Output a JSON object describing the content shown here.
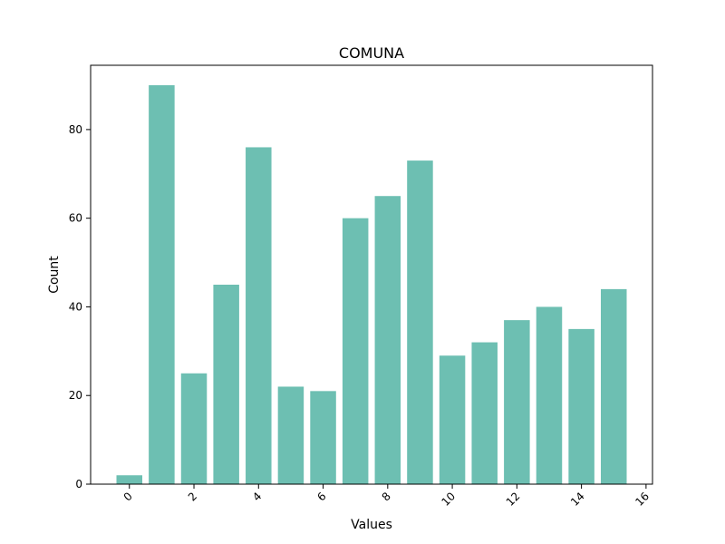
{
  "chart_data": {
    "type": "bar",
    "title": "COMUNA",
    "xlabel": "Values",
    "ylabel": "Count",
    "x": [
      0,
      1,
      2,
      3,
      4,
      5,
      6,
      7,
      8,
      9,
      10,
      11,
      12,
      13,
      14,
      15
    ],
    "values": [
      2,
      90,
      25,
      45,
      76,
      22,
      21,
      60,
      65,
      73,
      29,
      32,
      37,
      40,
      35,
      44
    ],
    "xlim": [
      -1.2,
      16.2
    ],
    "ylim": [
      0,
      94.5
    ],
    "xticks": [
      0,
      2,
      4,
      6,
      8,
      10,
      12,
      14,
      16
    ],
    "yticks": [
      0,
      20,
      40,
      60,
      80
    ],
    "xtick_rotation": 45,
    "grid": false,
    "bar_color": "#6dbfb2"
  }
}
